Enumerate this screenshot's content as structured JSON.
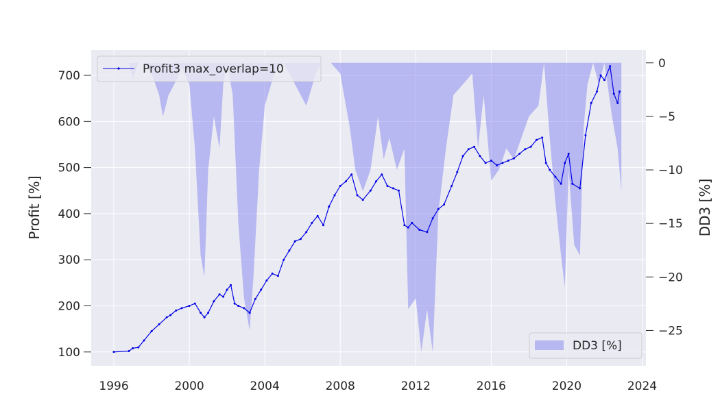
{
  "chart_data": {
    "type": "line",
    "title": "",
    "xlabel": "",
    "ylabel": "Profit [%]",
    "y2label": "DD3 [%]",
    "xlim": [
      1994.8,
      2024.2
    ],
    "ylim": [
      70,
      755
    ],
    "y2lim": [
      -28.3,
      1.2
    ],
    "x_ticks": [
      1996,
      2000,
      2004,
      2008,
      2012,
      2016,
      2020,
      2024
    ],
    "y_ticks": [
      100,
      200,
      300,
      400,
      500,
      600,
      700
    ],
    "y2_ticks": [
      0,
      -5,
      -10,
      -15,
      -20,
      -25
    ],
    "y2_tick_labels": [
      "0",
      "−5",
      "−10",
      "−15",
      "−20",
      "−25"
    ],
    "grid": true,
    "legend_top": {
      "placement": "upper-left",
      "label": "Profit3 max_overlap=10"
    },
    "legend_bottom": {
      "placement": "lower-right",
      "label": "DD3 [%]"
    },
    "series": [
      {
        "name": "Profit3 max_overlap=10",
        "axis": "left",
        "style": "line-with-dot-markers",
        "color": "#0000e6",
        "x": [
          1996.0,
          1996.8,
          1997.0,
          1997.3,
          1997.6,
          1998.0,
          1998.4,
          1998.8,
          1999.0,
          1999.3,
          1999.6,
          2000.0,
          2000.3,
          2000.6,
          2000.8,
          2001.0,
          2001.3,
          2001.6,
          2001.8,
          2002.0,
          2002.2,
          2002.4,
          2002.6,
          2002.9,
          2003.2,
          2003.5,
          2003.8,
          2004.1,
          2004.4,
          2004.7,
          2005.0,
          2005.3,
          2005.6,
          2005.9,
          2006.2,
          2006.5,
          2006.8,
          2007.1,
          2007.4,
          2007.7,
          2008.0,
          2008.3,
          2008.6,
          2008.9,
          2009.2,
          2009.6,
          2009.9,
          2010.2,
          2010.5,
          2010.8,
          2011.1,
          2011.4,
          2011.6,
          2011.8,
          2012.2,
          2012.6,
          2012.9,
          2013.2,
          2013.5,
          2013.9,
          2014.2,
          2014.5,
          2014.8,
          2015.1,
          2015.4,
          2015.7,
          2016.0,
          2016.3,
          2016.6,
          2016.9,
          2017.2,
          2017.5,
          2017.8,
          2018.1,
          2018.4,
          2018.7,
          2018.9,
          2019.1,
          2019.4,
          2019.7,
          2019.9,
          2020.1,
          2020.3,
          2020.7,
          2021.0,
          2021.3,
          2021.6,
          2021.8,
          2022.0,
          2022.3,
          2022.5,
          2022.7,
          2022.8
        ],
        "y": [
          100,
          102,
          108,
          110,
          125,
          145,
          160,
          175,
          180,
          190,
          195,
          200,
          205,
          185,
          175,
          185,
          210,
          225,
          220,
          235,
          245,
          205,
          200,
          195,
          185,
          215,
          235,
          255,
          270,
          265,
          300,
          320,
          340,
          345,
          360,
          380,
          395,
          375,
          415,
          440,
          460,
          470,
          485,
          440,
          430,
          450,
          470,
          485,
          460,
          455,
          450,
          375,
          370,
          380,
          365,
          360,
          390,
          410,
          420,
          460,
          490,
          525,
          540,
          545,
          525,
          510,
          515,
          505,
          510,
          515,
          520,
          530,
          540,
          545,
          560,
          565,
          510,
          495,
          480,
          465,
          510,
          530,
          465,
          455,
          570,
          640,
          665,
          700,
          690,
          720,
          660,
          640,
          665
        ]
      },
      {
        "name": "DD3 [%]",
        "axis": "right",
        "style": "area",
        "color": "#7b7bf0",
        "x": [
          1996.0,
          1996.8,
          1997.0,
          1997.3,
          1997.6,
          1998.0,
          1998.4,
          1998.6,
          1998.9,
          1999.2,
          1999.6,
          2000.0,
          2000.3,
          2000.6,
          2000.8,
          2001.0,
          2001.3,
          2001.6,
          2001.8,
          2002.0,
          2002.3,
          2002.6,
          2002.9,
          2003.2,
          2003.4,
          2003.7,
          2004.0,
          2004.5,
          2005.0,
          2005.6,
          2006.2,
          2006.7,
          2007.0,
          2007.5,
          2008.0,
          2008.5,
          2008.8,
          2009.2,
          2009.6,
          2010.0,
          2010.3,
          2010.6,
          2011.0,
          2011.4,
          2011.6,
          2012.0,
          2012.3,
          2012.6,
          2012.9,
          2013.2,
          2013.6,
          2014.0,
          2014.5,
          2015.0,
          2015.3,
          2015.6,
          2016.0,
          2016.4,
          2016.8,
          2017.2,
          2017.6,
          2018.0,
          2018.5,
          2018.8,
          2019.1,
          2019.4,
          2019.7,
          2019.9,
          2020.1,
          2020.4,
          2020.7,
          2020.9,
          2021.1,
          2021.4,
          2021.7,
          2022.0,
          2022.4,
          2022.7,
          2022.9
        ],
        "y": [
          0,
          0,
          -1.5,
          0,
          0,
          -1.0,
          -3.0,
          -5.0,
          -3.0,
          -2.0,
          -0.5,
          -2.0,
          -8.0,
          -18.0,
          -20.0,
          -10.0,
          -5.0,
          -8.0,
          -2.0,
          0,
          -3.0,
          -15.0,
          -22.0,
          -25.0,
          -20.0,
          -10.0,
          -4.0,
          -1.0,
          0,
          -2.0,
          -4.0,
          -1.0,
          0,
          0,
          -1.0,
          -6.0,
          -10.0,
          -12.0,
          -10.0,
          -5.0,
          -9.0,
          -7.0,
          -10.0,
          -8.0,
          -23.0,
          -22.0,
          -27.0,
          -23.0,
          -27.0,
          -14.0,
          -8.0,
          -3.0,
          -2.0,
          -1.0,
          -8.0,
          -3.0,
          -11.0,
          -10.0,
          -8.0,
          -9.0,
          -7.0,
          -5.0,
          -4.0,
          0,
          -7.0,
          -13.0,
          -18.0,
          -21.0,
          -10.0,
          -17.0,
          -18.0,
          -6.0,
          -2.0,
          0,
          -2.0,
          0,
          -5.0,
          -8.0,
          -12.0
        ]
      }
    ]
  }
}
